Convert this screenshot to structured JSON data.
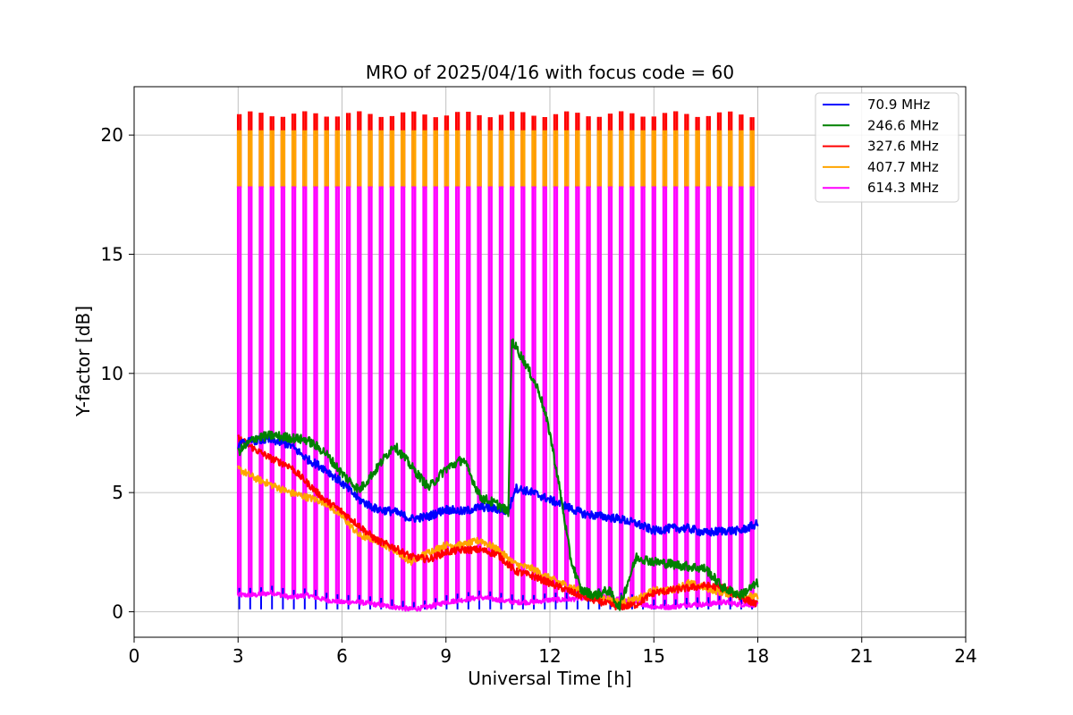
{
  "chart_data": {
    "type": "line",
    "title": "MRO of 2025/04/16 with focus code = 60",
    "xlabel": "Universal Time [h]",
    "ylabel": "Y-factor [dB]",
    "xlim": [
      0,
      24
    ],
    "ylim": [
      -1.07,
      22.03
    ],
    "xticks": [
      0,
      3,
      6,
      9,
      12,
      15,
      18,
      21,
      24
    ],
    "yticks": [
      0,
      5,
      10,
      15,
      20
    ],
    "grid": true,
    "legend_position": "top-right",
    "calibration": {
      "start_h": 3.0,
      "end_h": 17.8,
      "count": 48,
      "spike_width_h": 0.07,
      "peak_db": 17.8,
      "orange_cap_db": 20.2,
      "red_cap_db": 20.9,
      "red_cap_range_db": [
        20.75,
        21.0
      ]
    },
    "series": [
      {
        "name": " 70.9 MHz",
        "color": "#0000ff",
        "x": [
          3.0,
          3.5,
          4.0,
          4.5,
          5.0,
          5.5,
          6.0,
          6.5,
          7.0,
          7.5,
          8.0,
          8.5,
          9.0,
          9.5,
          10.0,
          10.5,
          10.8,
          11.0,
          11.5,
          12.0,
          12.5,
          13.0,
          13.5,
          14.0,
          14.5,
          15.0,
          15.5,
          16.0,
          16.5,
          17.0,
          17.5,
          18.0
        ],
        "y": [
          7.0,
          7.2,
          7.2,
          7.0,
          6.4,
          6.0,
          5.4,
          4.7,
          4.3,
          4.2,
          3.9,
          4.0,
          4.3,
          4.2,
          4.4,
          4.3,
          4.2,
          5.2,
          5.0,
          4.7,
          4.4,
          4.1,
          4.0,
          3.9,
          3.7,
          3.4,
          3.5,
          3.5,
          3.3,
          3.4,
          3.4,
          3.7
        ]
      },
      {
        "name": "246.6 MHz",
        "color": "#008000",
        "x": [
          3.0,
          3.5,
          4.0,
          4.5,
          5.0,
          5.5,
          6.0,
          6.5,
          7.0,
          7.5,
          8.0,
          8.5,
          9.0,
          9.5,
          10.0,
          10.5,
          10.8,
          10.9,
          11.3,
          11.7,
          12.0,
          12.3,
          12.6,
          12.9,
          13.3,
          13.7,
          14.0,
          14.5,
          15.0,
          15.5,
          16.0,
          16.5,
          17.0,
          17.5,
          18.0
        ],
        "y": [
          6.7,
          7.3,
          7.4,
          7.3,
          7.2,
          6.7,
          5.8,
          5.1,
          6.0,
          7.0,
          6.1,
          5.2,
          6.0,
          6.4,
          4.8,
          4.5,
          4.2,
          11.4,
          10.4,
          9.2,
          7.5,
          5.0,
          2.2,
          0.9,
          0.7,
          0.9,
          0.2,
          2.3,
          2.1,
          2.0,
          1.9,
          1.8,
          1.0,
          0.7,
          1.2
        ]
      },
      {
        "name": "327.6 MHz",
        "color": "#ff0000",
        "x": [
          3.0,
          3.5,
          4.0,
          4.5,
          5.0,
          5.5,
          6.0,
          6.5,
          7.0,
          7.5,
          8.0,
          8.5,
          9.0,
          9.5,
          10.0,
          10.5,
          11.0,
          11.5,
          12.0,
          12.5,
          13.0,
          13.5,
          14.0,
          14.5,
          15.0,
          15.5,
          16.0,
          16.5,
          17.0,
          17.5,
          18.0
        ],
        "y": [
          7.3,
          6.8,
          6.4,
          6.1,
          5.4,
          4.7,
          4.2,
          3.6,
          3.0,
          2.7,
          2.3,
          2.2,
          2.5,
          2.6,
          2.6,
          2.4,
          1.7,
          1.5,
          1.2,
          0.9,
          0.6,
          0.4,
          0.2,
          0.3,
          0.8,
          0.9,
          1.0,
          1.1,
          1.0,
          0.6,
          0.3
        ]
      },
      {
        "name": "407.7 MHz",
        "color": "#ffa500",
        "x": [
          3.0,
          3.5,
          4.0,
          4.5,
          5.0,
          5.5,
          6.0,
          6.5,
          7.0,
          7.5,
          8.0,
          8.5,
          9.0,
          9.5,
          10.0,
          10.5,
          11.0,
          11.5,
          12.0,
          12.5,
          13.0,
          13.5,
          14.0,
          14.5,
          15.0,
          15.5,
          16.0,
          16.5,
          17.0,
          17.5,
          18.0
        ],
        "y": [
          6.0,
          5.6,
          5.3,
          5.0,
          4.8,
          4.6,
          4.0,
          3.2,
          3.0,
          2.6,
          2.1,
          2.5,
          2.8,
          2.8,
          3.0,
          2.6,
          2.0,
          1.8,
          1.4,
          1.1,
          0.8,
          0.6,
          0.4,
          0.5,
          0.9,
          0.9,
          1.2,
          1.0,
          0.8,
          0.7,
          0.6
        ]
      },
      {
        "name": "614.3 MHz",
        "color": "#ff00ff",
        "x": [
          3.0,
          3.5,
          4.0,
          4.5,
          5.0,
          5.5,
          6.0,
          6.5,
          7.0,
          7.5,
          8.0,
          8.5,
          9.0,
          9.5,
          10.0,
          10.5,
          11.0,
          11.5,
          12.0,
          12.5,
          13.0,
          13.5,
          14.0,
          14.5,
          15.0,
          15.5,
          16.0,
          16.5,
          17.0,
          17.5,
          18.0
        ],
        "y": [
          0.7,
          0.7,
          0.8,
          0.6,
          0.7,
          0.5,
          0.4,
          0.4,
          0.3,
          0.2,
          0.1,
          0.2,
          0.4,
          0.5,
          0.6,
          0.5,
          0.4,
          0.4,
          0.5,
          0.5,
          0.6,
          0.7,
          0.5,
          0.4,
          0.2,
          0.2,
          0.3,
          0.3,
          0.4,
          0.3,
          0.3
        ]
      }
    ]
  }
}
